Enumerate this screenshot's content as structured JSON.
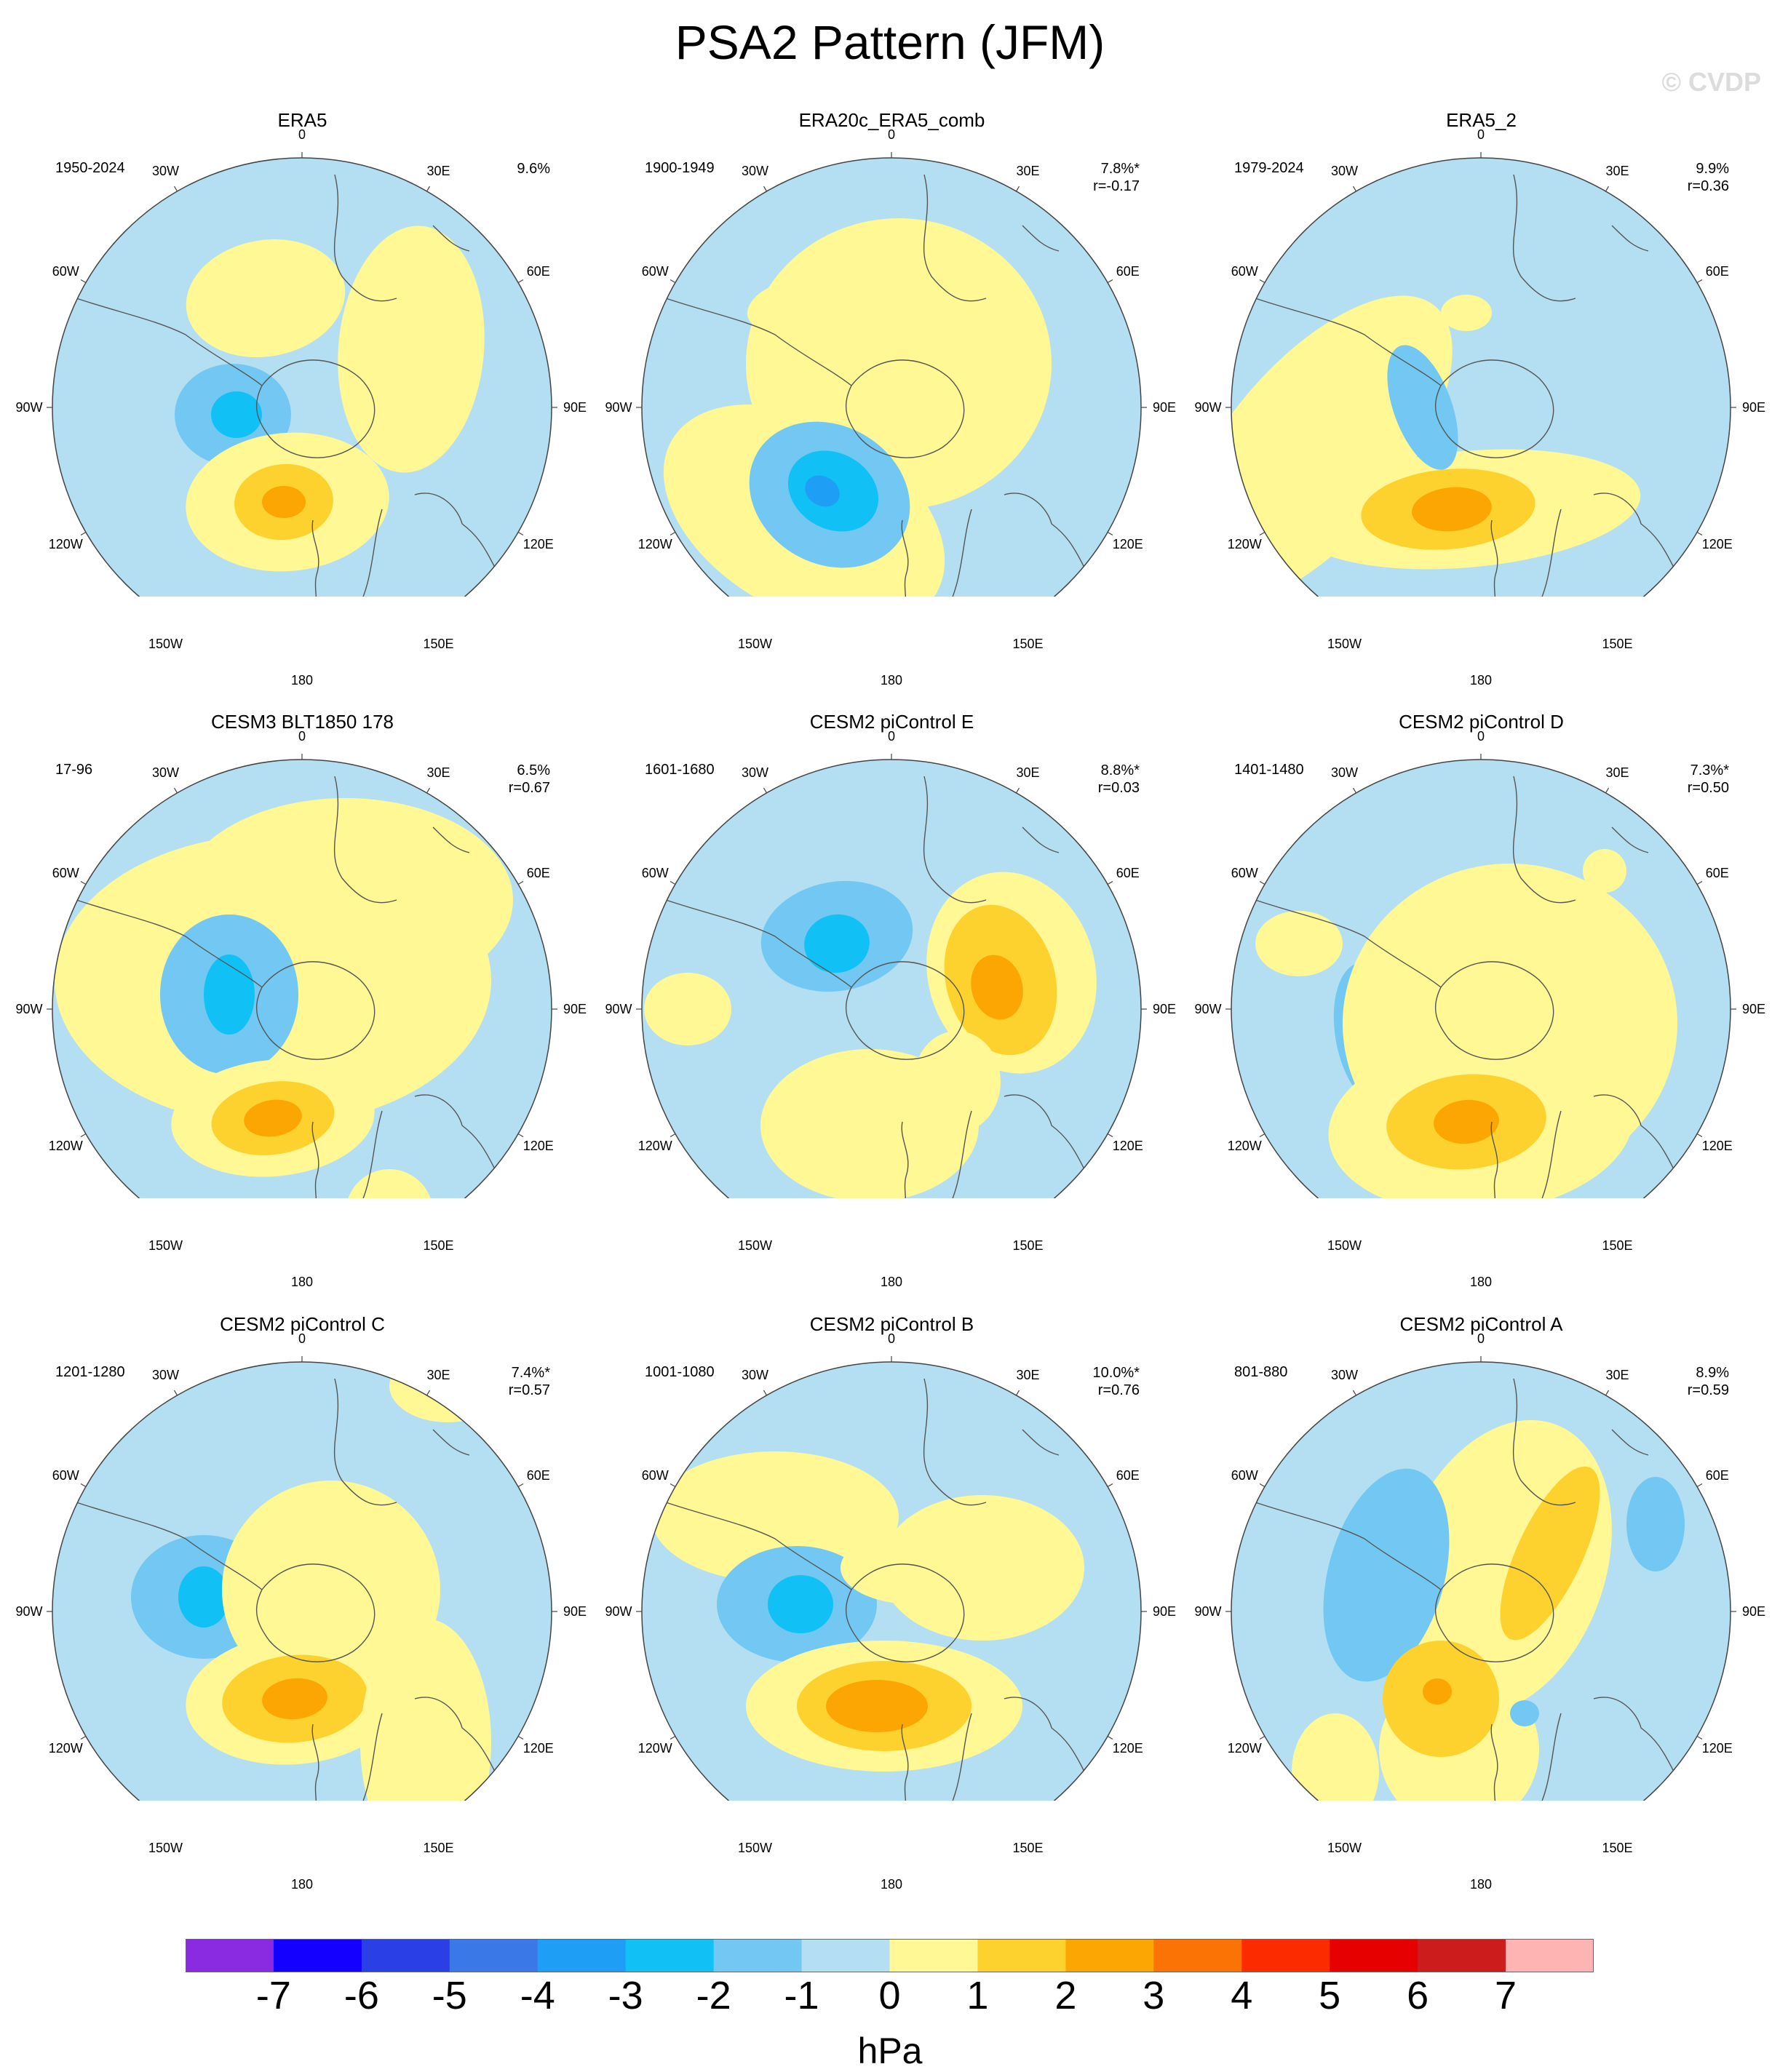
{
  "title": "PSA2 Pattern (JFM)",
  "watermark": "© CVDP",
  "longitude_labels": [
    "0",
    "30E",
    "60E",
    "90E",
    "120E",
    "150E",
    "180",
    "150W",
    "120W",
    "90W",
    "60W",
    "30W"
  ],
  "colors": {
    "map_ocean": "#b4dff2",
    "minus2": "#72c8f2",
    "minus3": "#11c0f5",
    "minus4": "#1e9ff5",
    "plus1": "#fff894",
    "plus2": "#fdd22e",
    "plus3": "#fba602",
    "coast": "#555555"
  },
  "panels": [
    {
      "title": "ERA5",
      "period": "1950-2024",
      "pct": "9.6%",
      "r": ""
    },
    {
      "title": "ERA20c_ERA5_comb",
      "period": "1900-1949",
      "pct": "7.8%*",
      "r": "r=-0.17"
    },
    {
      "title": "ERA5_2",
      "period": "1979-2024",
      "pct": "9.9%",
      "r": "r=0.36"
    },
    {
      "title": "CESM3 BLT1850 178",
      "period": "17-96",
      "pct": "6.5%",
      "r": "r=0.67"
    },
    {
      "title": "CESM2 piControl E",
      "period": "1601-1680",
      "pct": "8.8%*",
      "r": "r=0.03"
    },
    {
      "title": "CESM2 piControl D",
      "period": "1401-1480",
      "pct": "7.3%*",
      "r": "r=0.50"
    },
    {
      "title": "CESM2 piControl C",
      "period": "1201-1280",
      "pct": "7.4%*",
      "r": "r=0.57"
    },
    {
      "title": "CESM2 piControl B",
      "period": "1001-1080",
      "pct": "10.0%*",
      "r": "r=0.76"
    },
    {
      "title": "CESM2 piControl A",
      "period": "801-880",
      "pct": "8.9%",
      "r": "r=0.59"
    }
  ],
  "colorbar": {
    "units": "hPa",
    "ticks": [
      "-7",
      "-6",
      "-5",
      "-4",
      "-3",
      "-2",
      "-1",
      "0",
      "1",
      "2",
      "3",
      "4",
      "5",
      "6",
      "7"
    ],
    "colors": [
      "#8a2be2",
      "#1400ff",
      "#2a40e6",
      "#3a78e8",
      "#1e9ff5",
      "#11c0f5",
      "#72c8f2",
      "#b4dff2",
      "#fff894",
      "#fdd22e",
      "#fba602",
      "#fb7305",
      "#fd2c00",
      "#e60000",
      "#cc1c1c",
      "#ffb4b4"
    ]
  }
}
